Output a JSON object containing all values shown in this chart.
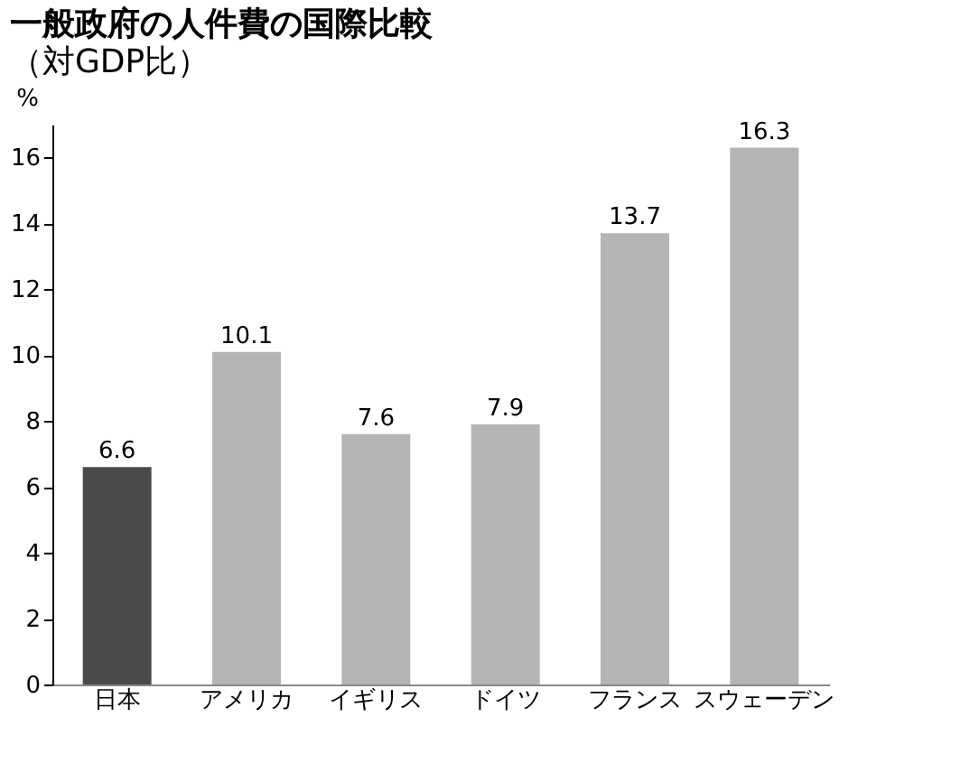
{
  "chart_data": {
    "type": "bar",
    "title": "一般政府の人件費の国際比較",
    "subtitle": "（対GDP比）",
    "ylabel": "%",
    "categories": [
      "日本",
      "アメリカ",
      "イギリス",
      "ドイツ",
      "フランス",
      "スウェーデン"
    ],
    "values": [
      6.6,
      10.1,
      7.6,
      7.9,
      13.7,
      16.3
    ],
    "colors": [
      "#4a4a4a",
      "#b4b4b4",
      "#b4b4b4",
      "#b4b4b4",
      "#b4b4b4",
      "#b4b4b4"
    ],
    "ylim": [
      0,
      17
    ],
    "yticks": [
      0,
      2,
      4,
      6,
      8,
      10,
      12,
      14,
      16
    ],
    "grid": false,
    "data_labels": true
  }
}
